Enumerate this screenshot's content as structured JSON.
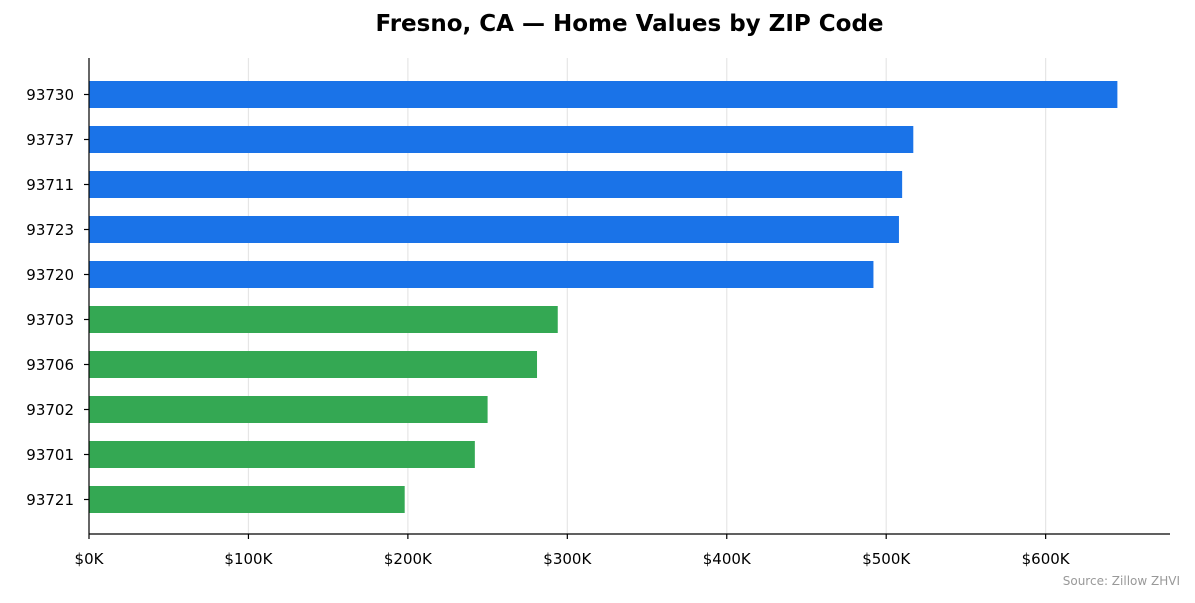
{
  "chart_data": {
    "type": "bar",
    "orientation": "horizontal",
    "title": "Fresno, CA — Home Values by ZIP Code",
    "xlabel": "",
    "ylabel": "",
    "categories": [
      "93730",
      "93737",
      "93711",
      "93723",
      "93720",
      "93703",
      "93706",
      "93702",
      "93701",
      "93721"
    ],
    "values": [
      645000,
      517000,
      510000,
      508000,
      492000,
      294000,
      281000,
      250000,
      242000,
      198000
    ],
    "bar_colors": [
      "#1a73e8",
      "#1a73e8",
      "#1a73e8",
      "#1a73e8",
      "#1a73e8",
      "#34a853",
      "#34a853",
      "#34a853",
      "#34a853",
      "#34a853"
    ],
    "xlim": [
      0,
      678000
    ],
    "xticks": [
      0,
      100000,
      200000,
      300000,
      400000,
      500000,
      600000
    ],
    "xtick_labels": [
      "$0K",
      "$100K",
      "$200K",
      "$300K",
      "$400K",
      "$500K",
      "$600K"
    ],
    "grid": "vertical",
    "grid_color": "#e6e6e6",
    "source": "Source: Zillow ZHVI"
  }
}
